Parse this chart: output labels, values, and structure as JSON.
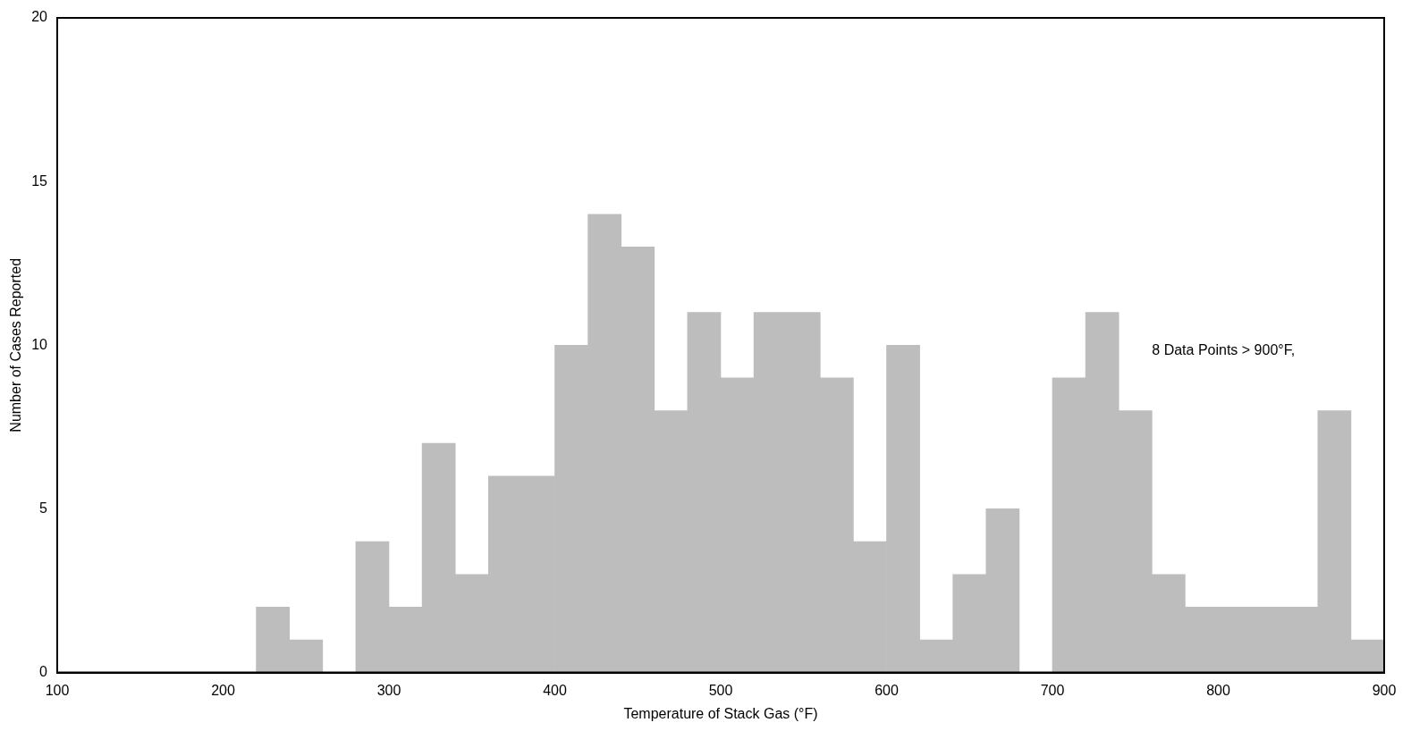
{
  "chart_data": {
    "type": "histogram",
    "xlabel": "Temperature of Stack Gas (°F)",
    "ylabel": "Number of Cases Reported",
    "bins": [
      100,
      120,
      140,
      160,
      180,
      200,
      220,
      240,
      260,
      280,
      300,
      320,
      340,
      360,
      380,
      400,
      420,
      440,
      460,
      480,
      500,
      520,
      540,
      560,
      580,
      600,
      620,
      640,
      660,
      680,
      700,
      720,
      740,
      760,
      780,
      800,
      820,
      840,
      860,
      880,
      900
    ],
    "values": [
      0,
      0,
      0,
      0,
      0,
      0,
      2,
      1,
      0,
      4,
      2,
      7,
      3,
      6,
      6,
      10,
      14,
      13,
      8,
      11,
      9,
      11,
      11,
      9,
      4,
      10,
      1,
      3,
      5,
      0,
      9,
      11,
      8,
      3,
      2,
      2,
      2,
      2,
      8,
      1
    ],
    "color": "#bdbdbd",
    "xlim": [
      100,
      900
    ],
    "xticks": [
      100,
      200,
      300,
      400,
      500,
      600,
      700,
      800,
      900
    ],
    "ylim": [
      0,
      20
    ],
    "yticks": [
      0,
      5,
      10,
      15,
      20
    ],
    "grid": false,
    "annotations": [
      "8 Data Points > 900°F,"
    ]
  }
}
